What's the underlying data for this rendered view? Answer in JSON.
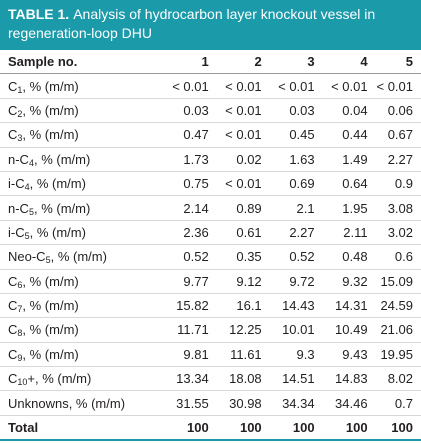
{
  "title": {
    "label": "TABLE 1.",
    "text": "Analysis of hydrocarbon layer knockout vessel in regeneration-loop DHU"
  },
  "headers": [
    "Sample no.",
    "1",
    "2",
    "3",
    "4",
    "5"
  ],
  "rows": [
    {
      "pre": "C",
      "sub": "1",
      "post": ", % (m/m)",
      "values": [
        "< 0.01",
        "< 0.01",
        "< 0.01",
        "< 0.01",
        "< 0.01"
      ]
    },
    {
      "pre": "C",
      "sub": "2",
      "post": ", % (m/m)",
      "values": [
        "0.03",
        "< 0.01",
        "0.03",
        "0.04",
        "0.06"
      ]
    },
    {
      "pre": "C",
      "sub": "3",
      "post": ", % (m/m)",
      "values": [
        "0.47",
        "< 0.01",
        "0.45",
        "0.44",
        "0.67"
      ]
    },
    {
      "pre": "n-C",
      "sub": "4",
      "post": ", % (m/m)",
      "values": [
        "1.73",
        "0.02",
        "1.63",
        "1.49",
        "2.27"
      ]
    },
    {
      "pre": "i-C",
      "sub": "4",
      "post": ", % (m/m)",
      "values": [
        "0.75",
        "< 0.01",
        "0.69",
        "0.64",
        "0.9"
      ]
    },
    {
      "pre": "n-C",
      "sub": "5",
      "post": ", % (m/m)",
      "values": [
        "2.14",
        "0.89",
        "2.1",
        "1.95",
        "3.08"
      ]
    },
    {
      "pre": "i-C",
      "sub": "5",
      "post": ", % (m/m)",
      "values": [
        "2.36",
        "0.61",
        "2.27",
        "2.11",
        "3.02"
      ]
    },
    {
      "pre": "Neo-C",
      "sub": "5",
      "post": ", % (m/m)",
      "values": [
        "0.52",
        "0.35",
        "0.52",
        "0.48",
        "0.6"
      ]
    },
    {
      "pre": "C",
      "sub": "6",
      "post": ", % (m/m)",
      "values": [
        "9.77",
        "9.12",
        "9.72",
        "9.32",
        "15.09"
      ]
    },
    {
      "pre": "C",
      "sub": "7",
      "post": ", % (m/m)",
      "values": [
        "15.82",
        "16.1",
        "14.43",
        "14.31",
        "24.59"
      ]
    },
    {
      "pre": "C",
      "sub": "8",
      "post": ", % (m/m)",
      "values": [
        "11.71",
        "12.25",
        "10.01",
        "10.49",
        "21.06"
      ]
    },
    {
      "pre": "C",
      "sub": "9",
      "post": ", % (m/m)",
      "values": [
        "9.81",
        "11.61",
        "9.3",
        "9.43",
        "19.95"
      ]
    },
    {
      "pre": "C",
      "sub": "10",
      "post": "+, % (m/m)",
      "values": [
        "13.34",
        "18.08",
        "14.51",
        "14.83",
        "8.02"
      ]
    },
    {
      "pre": "Unknowns, % (m/m)",
      "sub": "",
      "post": "",
      "values": [
        "31.55",
        "30.98",
        "34.34",
        "34.46",
        "0.7"
      ]
    }
  ],
  "total": {
    "label": "Total",
    "values": [
      "100",
      "100",
      "100",
      "100",
      "100"
    ]
  }
}
